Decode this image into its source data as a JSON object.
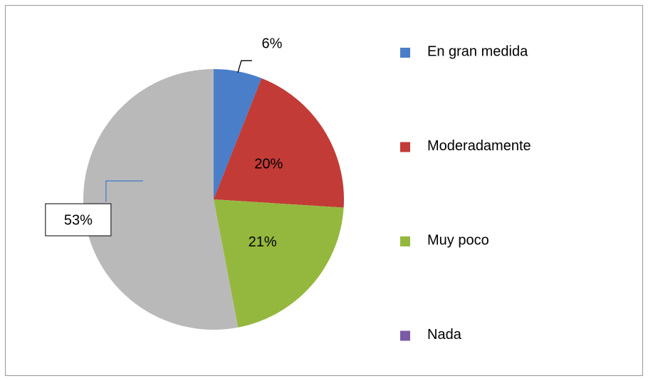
{
  "chart_data": {
    "type": "pie",
    "categories": [
      "En gran medida",
      "Moderadamente",
      "Muy poco",
      "Nada"
    ],
    "values": [
      6,
      20,
      21,
      53
    ],
    "value_labels": [
      "6%",
      "20%",
      "21%",
      "53%"
    ],
    "colors": [
      "#4a7ec9",
      "#c23b37",
      "#94b83e",
      "#b9b9b9"
    ],
    "legend_colors": [
      "#4a7ec9",
      "#c23b37",
      "#94b83e",
      "#7b5aa6"
    ],
    "legend": "right"
  }
}
